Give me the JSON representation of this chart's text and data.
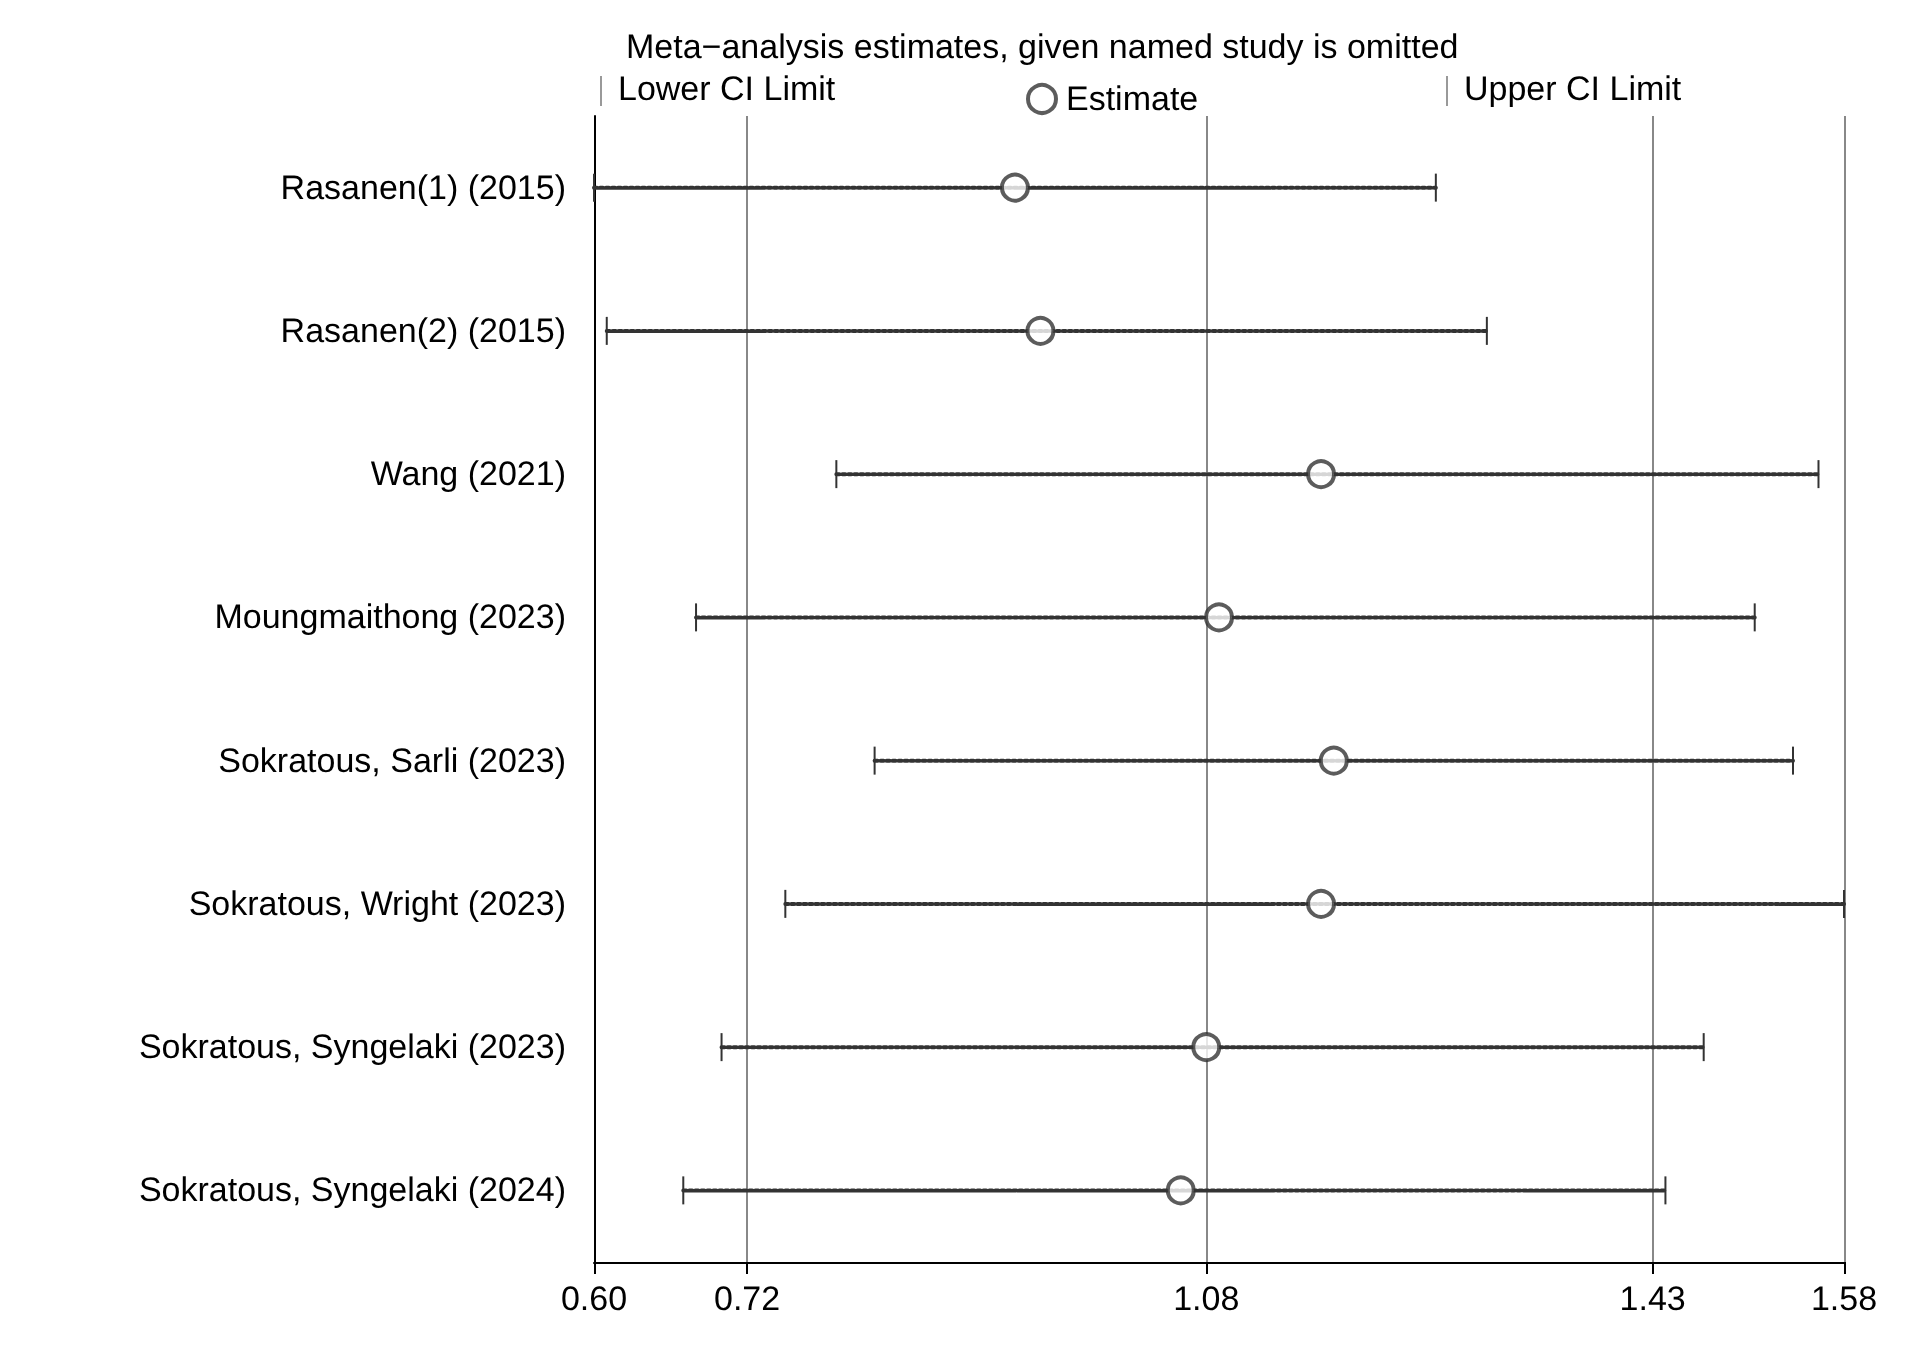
{
  "chart_data": {
    "type": "scatter",
    "orientation": "horizontal",
    "title": "Meta−analysis estimates, given named study is omitted",
    "categories": [
      "Rasanen(1) (2015)",
      "Rasanen(2) (2015)",
      "Wang (2021)",
      "Moungmaithong (2023)",
      "Sokratous, Sarli (2023)",
      "Sokratous, Wright (2023)",
      "Sokratous, Syngelaki (2023)",
      "Sokratous, Syngelaki (2024)"
    ],
    "series": [
      {
        "name": "Estimate",
        "color": "#333333",
        "values": [
          0.93,
          0.95,
          1.17,
          1.09,
          1.18,
          1.17,
          1.08,
          1.06
        ],
        "errors": [
          [
            0.6,
            1.26
          ],
          [
            0.61,
            1.3
          ],
          [
            0.79,
            1.56
          ],
          [
            0.68,
            1.51
          ],
          [
            0.82,
            1.54
          ],
          [
            0.75,
            1.58
          ],
          [
            0.7,
            1.47
          ],
          [
            0.67,
            1.44
          ]
        ]
      }
    ],
    "annotations": [
      "Lower CI Limit",
      "Upper CI Limit"
    ],
    "xlim": [
      0.6,
      1.58
    ],
    "xticks": [
      {
        "value": 0.6,
        "label": "0.60"
      },
      {
        "value": 0.72,
        "label": "0.72"
      },
      {
        "value": 1.08,
        "label": "1.08"
      },
      {
        "value": 1.43,
        "label": "1.43"
      },
      {
        "value": 1.58,
        "label": "1.58"
      }
    ],
    "grid": "x",
    "legend": "top",
    "marker": "circle",
    "line_style": "dotted"
  }
}
